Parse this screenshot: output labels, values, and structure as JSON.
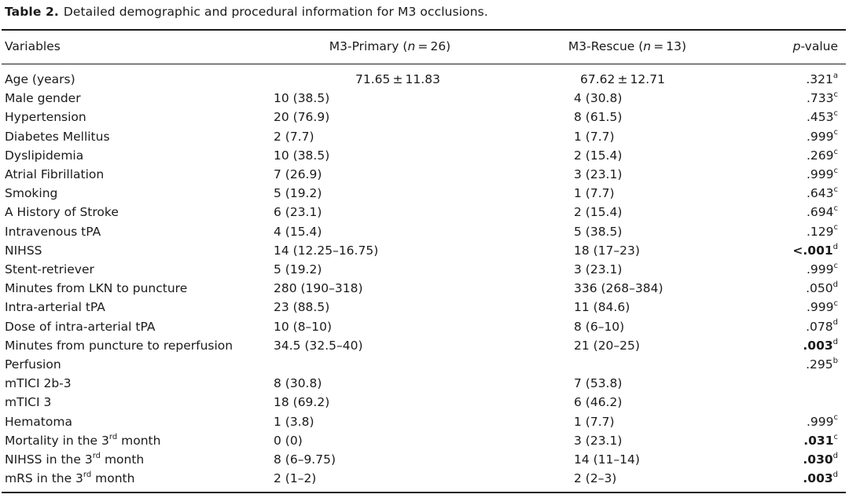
{
  "caption": {
    "label": "Table 2.",
    "text": "Detailed demographic and procedural information for M3 occlusions."
  },
  "header": {
    "variables": "Variables",
    "primary_prefix": "M3-Primary (",
    "primary_n": "n",
    "primary_suffix": " = 26)",
    "rescue_prefix": "M3-Rescue (",
    "rescue_n": "n",
    "rescue_suffix": " = 13)",
    "p_italic": "p",
    "p_rest": "-value"
  },
  "rows": [
    {
      "var": "Age (years)",
      "pri": "71.65 ± 11.83",
      "res": "67.62 ± 12.71",
      "p": ".321",
      "sup": "a",
      "bold": false
    },
    {
      "var": "Male gender",
      "pri": "10 (38.5)",
      "res": "4 (30.8)",
      "p": ".733",
      "sup": "c",
      "bold": false
    },
    {
      "var": "Hypertension",
      "pri": "20 (76.9)",
      "res": "8 (61.5)",
      "p": ".453",
      "sup": "c",
      "bold": false
    },
    {
      "var": "Diabetes Mellitus",
      "pri": "2 (7.7)",
      "res": "1 (7.7)",
      "p": ".999",
      "sup": "c",
      "bold": false
    },
    {
      "var": "Dyslipidemia",
      "pri": "10 (38.5)",
      "res": "2 (15.4)",
      "p": ".269",
      "sup": "c",
      "bold": false
    },
    {
      "var": "Atrial Fibrillation",
      "pri": "7 (26.9)",
      "res": "3 (23.1)",
      "p": ".999",
      "sup": "c",
      "bold": false
    },
    {
      "var": "Smoking",
      "pri": "5 (19.2)",
      "res": "1 (7.7)",
      "p": ".643",
      "sup": "c",
      "bold": false
    },
    {
      "var": "A History of Stroke",
      "pri": "6 (23.1)",
      "res": "2 (15.4)",
      "p": ".694",
      "sup": "c",
      "bold": false
    },
    {
      "var": "Intravenous tPA",
      "pri": "4 (15.4)",
      "res": "5 (38.5)",
      "p": ".129",
      "sup": "c",
      "bold": false
    },
    {
      "var": "NIHSS",
      "pri": "14 (12.25–16.75)",
      "res": "18 (17–23)",
      "p": "<.001",
      "sup": "d",
      "bold": true
    },
    {
      "var": "Stent-retriever",
      "pri": "5 (19.2)",
      "res": "3 (23.1)",
      "p": ".999",
      "sup": "c",
      "bold": false
    },
    {
      "var": "Minutes from LKN to puncture",
      "pri": "280 (190–318)",
      "res": "336 (268–384)",
      "p": ".050",
      "sup": "d",
      "bold": false
    },
    {
      "var": "Intra-arterial tPA",
      "pri": "23 (88.5)",
      "res": "11 (84.6)",
      "p": ".999",
      "sup": "c",
      "bold": false
    },
    {
      "var": "Dose of intra-arterial tPA",
      "pri": "10 (8–10)",
      "res": "8 (6–10)",
      "p": ".078",
      "sup": "d",
      "bold": false
    },
    {
      "var": "Minutes from puncture to reperfusion",
      "pri": "34.5 (32.5–40)",
      "res": "21 (20–25)",
      "p": ".003",
      "sup": "d",
      "bold": true
    },
    {
      "var": "Perfusion",
      "pri": "",
      "res": "",
      "p": ".295",
      "sup": "b",
      "bold": false
    },
    {
      "var": "mTICI 2b-3",
      "pri": "8 (30.8)",
      "res": "7 (53.8)",
      "p": "",
      "sup": "",
      "bold": false
    },
    {
      "var": "mTICI 3",
      "pri": "18 (69.2)",
      "res": "6 (46.2)",
      "p": "",
      "sup": "",
      "bold": false
    },
    {
      "var": "Hematoma",
      "pri": "1 (3.8)",
      "res": "1 (7.7)",
      "p": ".999",
      "sup": "c",
      "bold": false
    },
    {
      "var": "Mortality in the 3",
      "var_sup": "rd",
      "var_tail": " month",
      "pri": "0 (0)",
      "res": "3 (23.1)",
      "p": ".031",
      "sup": "c",
      "bold": true
    },
    {
      "var": "NIHSS in the 3",
      "var_sup": "rd",
      "var_tail": " month",
      "pri": "8 (6–9.75)",
      "res": "14 (11–14)",
      "p": ".030",
      "sup": "d",
      "bold": true
    },
    {
      "var": "mRS in the 3",
      "var_sup": "rd",
      "var_tail": " month",
      "pri": "2 (1–2)",
      "res": "2 (2–3)",
      "p": ".003",
      "sup": "d",
      "bold": true
    }
  ]
}
